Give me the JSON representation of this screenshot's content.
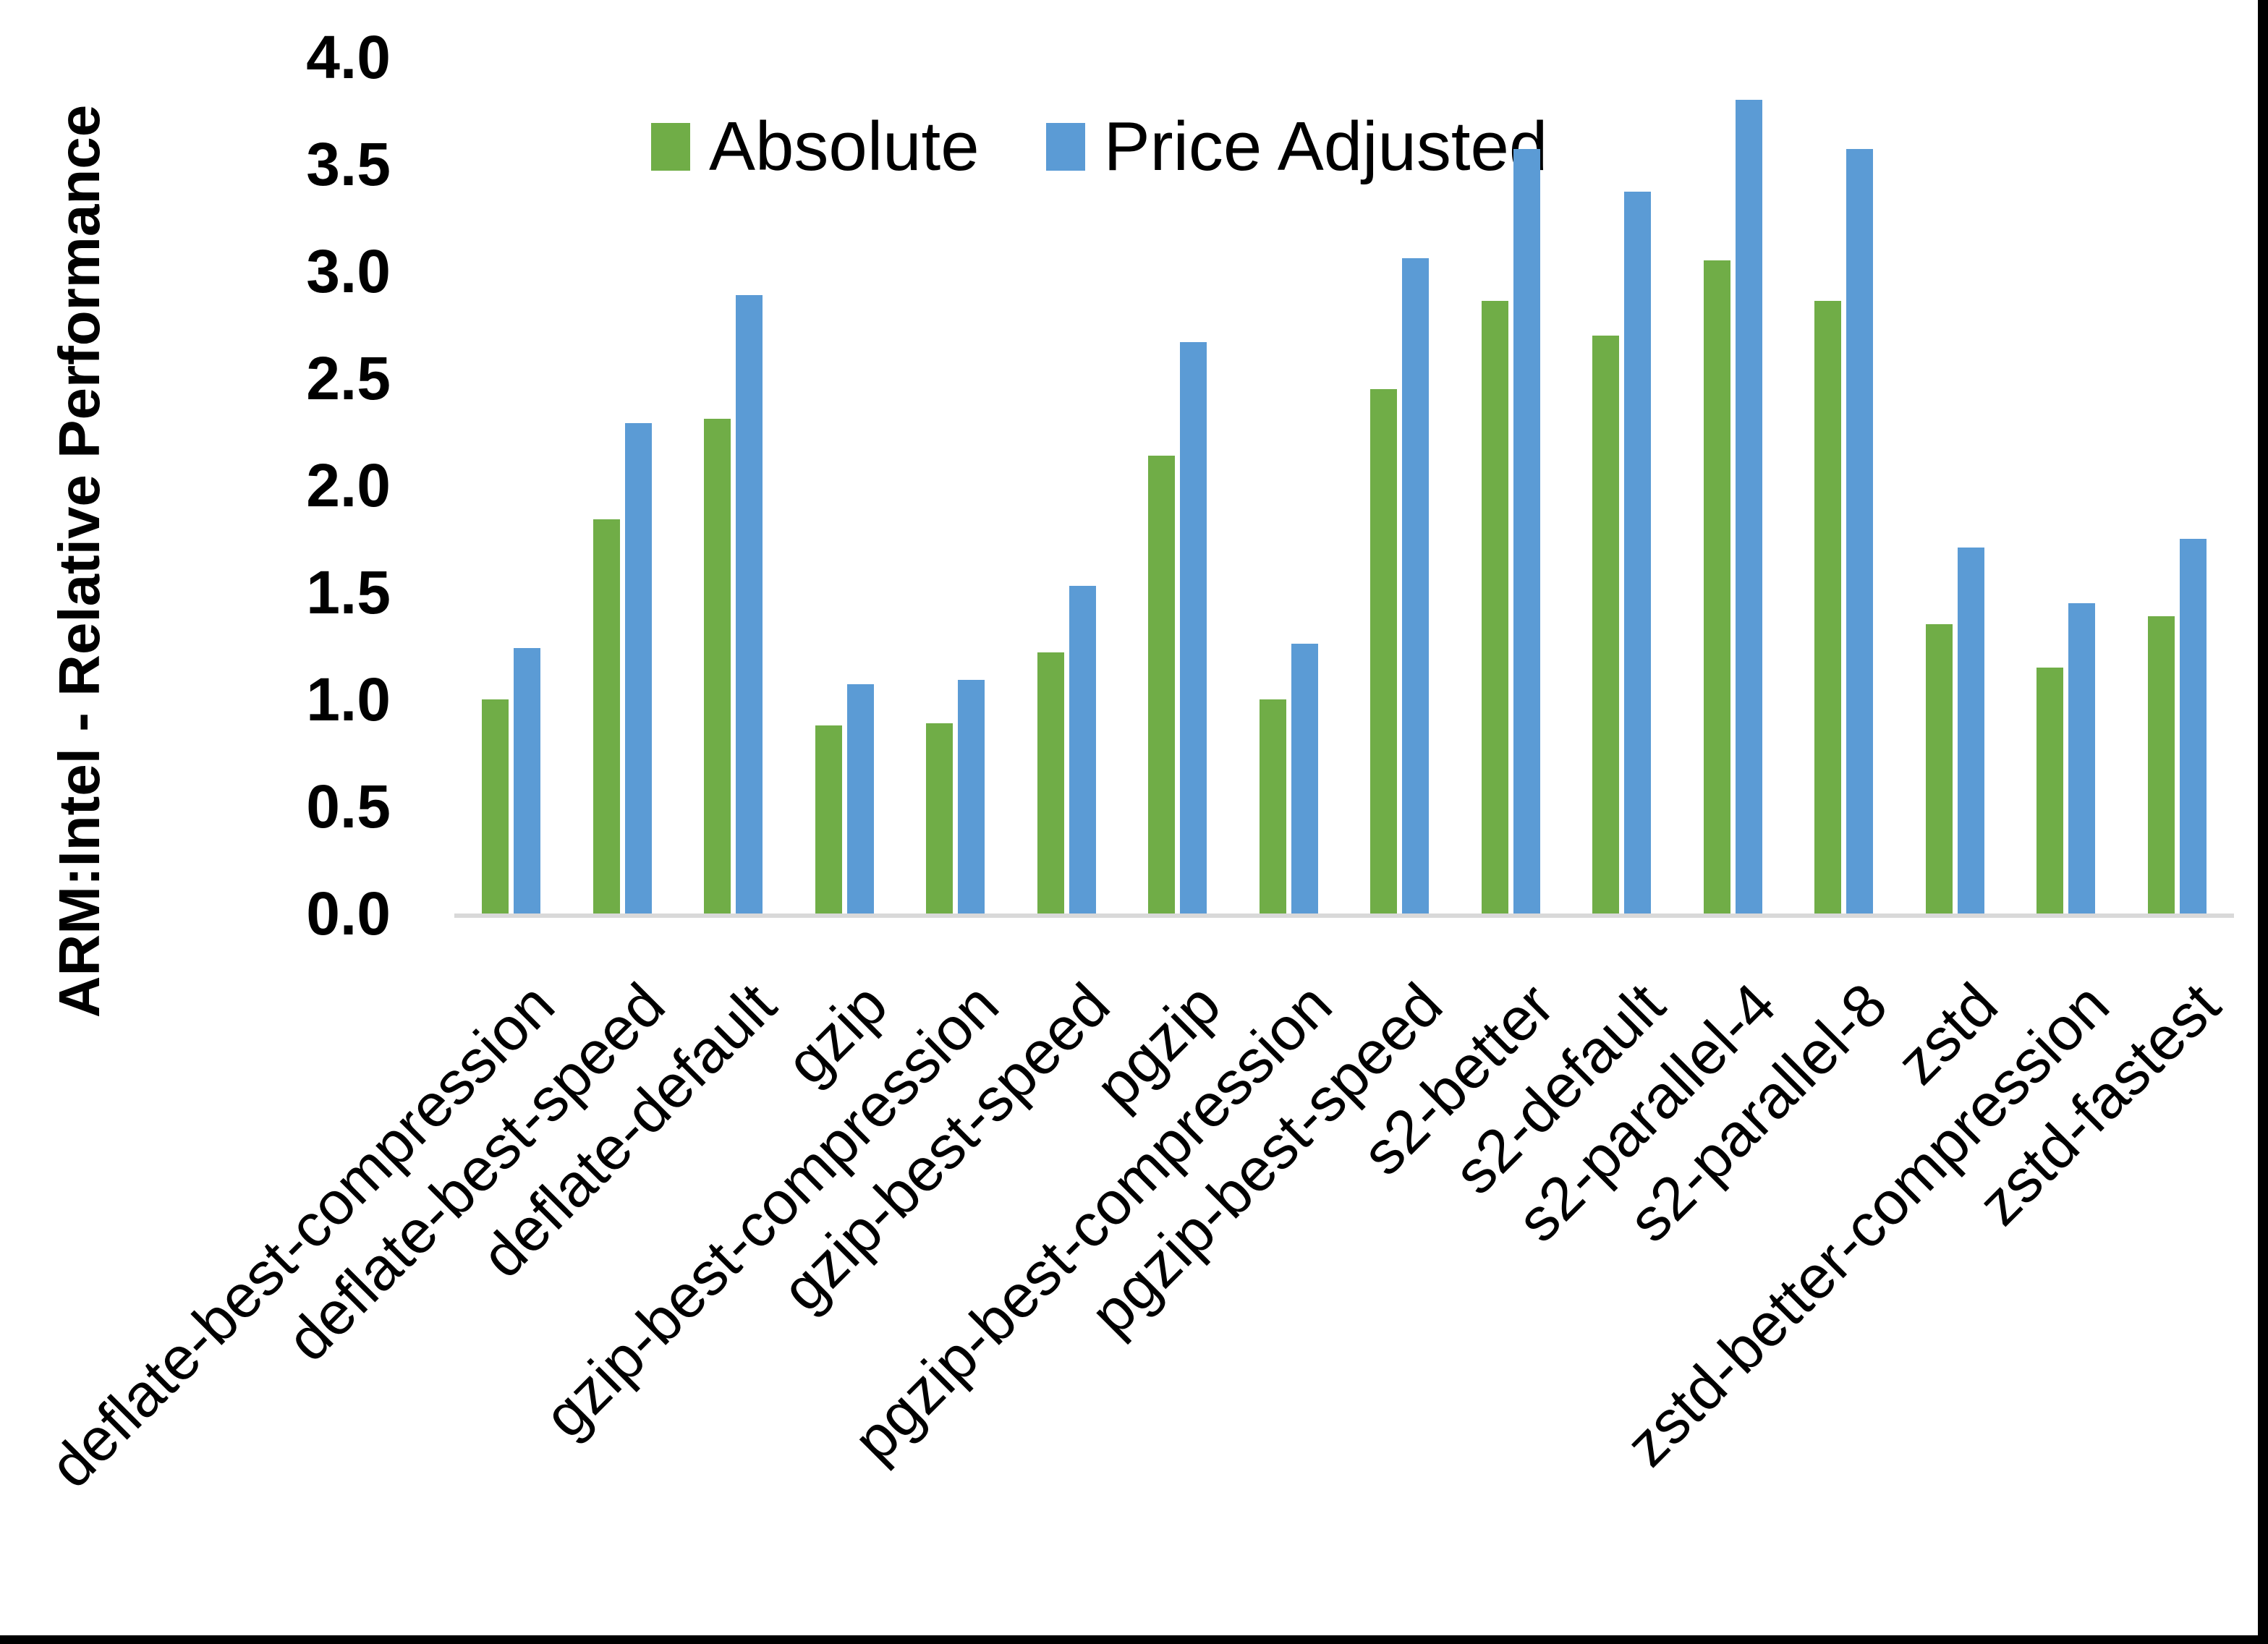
{
  "frame": {
    "background": "#FFFFFF",
    "border_color": "#000000"
  },
  "chart_data": {
    "type": "bar",
    "title": "",
    "y_axis_title": "ARM:Intel - Relative Performance",
    "x_axis_title": "",
    "categories": [
      "deflate-best-compression",
      "deflate-best-speed",
      "deflate-default",
      "gzip",
      "gzip-best-compression",
      "gzip-best-speed",
      "pgzip",
      "pgzip-best-compression",
      "pgzip-best-speed",
      "s2-better",
      "s2-default",
      "s2-parallel-4",
      "s2-parallel-8",
      "zstd",
      "zstd-better-compression",
      "zstd-fastest"
    ],
    "series": [
      {
        "name": "Absolute",
        "color": "#70AD47",
        "values": [
          1.0,
          1.84,
          2.31,
          0.88,
          0.89,
          1.22,
          2.14,
          1.0,
          2.45,
          2.86,
          2.7,
          3.05,
          2.86,
          1.35,
          1.15,
          1.39
        ]
      },
      {
        "name": "Price Adjusted",
        "color": "#5B9BD5",
        "values": [
          1.24,
          2.29,
          2.89,
          1.07,
          1.09,
          1.53,
          2.67,
          1.26,
          3.06,
          3.57,
          3.37,
          3.8,
          3.57,
          1.71,
          1.45,
          1.75
        ]
      }
    ],
    "ylim": [
      0.0,
      4.0
    ],
    "ytick_step": 0.5,
    "yticks": [
      "0.0",
      "0.5",
      "1.0",
      "1.5",
      "2.0",
      "2.5",
      "3.0",
      "3.5",
      "4.0"
    ],
    "grid": false,
    "legend_position": "top",
    "axis_line_color": "#D9D9D9",
    "text_color": "#000000"
  }
}
